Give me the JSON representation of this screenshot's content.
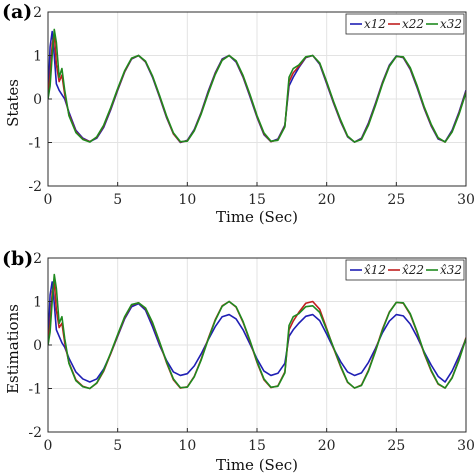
{
  "chart_data": [
    {
      "type": "line",
      "panel_label": "(a)",
      "xlabel": "Time (Sec)",
      "ylabel": "States",
      "xlim": [
        0,
        30
      ],
      "ylim": [
        -2,
        2
      ],
      "xticks": [
        0,
        5,
        10,
        15,
        20,
        25,
        30
      ],
      "yticks": [
        -2,
        -1,
        0,
        1,
        2
      ],
      "grid": true,
      "legend_position": "top-right",
      "series": [
        {
          "name": "x12",
          "color": "#1f1fb4",
          "x": [
            0,
            0.15,
            0.3,
            0.45,
            0.6,
            0.8,
            1.0,
            1.2,
            1.5,
            2,
            2.5,
            3,
            3.5,
            4,
            4.5,
            5,
            5.5,
            6,
            6.5,
            7,
            7.5,
            8,
            8.5,
            9,
            9.5,
            10,
            10.5,
            11,
            11.5,
            12,
            12.5,
            13,
            13.5,
            14,
            14.5,
            15,
            15.5,
            16,
            16.5,
            17,
            17.3,
            17.6,
            18,
            18.5,
            19,
            19.5,
            20,
            20.5,
            21,
            21.5,
            22,
            22.5,
            23,
            23.5,
            24,
            24.5,
            25,
            25.5,
            26,
            26.5,
            27,
            27.5,
            28,
            28.5,
            29,
            29.5,
            30
          ],
          "y": [
            0,
            1.2,
            1.55,
            1.0,
            0.35,
            0.2,
            0.1,
            0.0,
            -0.3,
            -0.72,
            -0.9,
            -0.98,
            -0.9,
            -0.65,
            -0.25,
            0.2,
            0.62,
            0.92,
            1.0,
            0.85,
            0.5,
            0.05,
            -0.42,
            -0.8,
            -1.0,
            -0.95,
            -0.7,
            -0.3,
            0.18,
            0.6,
            0.92,
            1.0,
            0.85,
            0.5,
            0.05,
            -0.42,
            -0.82,
            -0.98,
            -0.92,
            -0.6,
            0.3,
            0.5,
            0.72,
            0.95,
            1.0,
            0.8,
            0.35,
            -0.1,
            -0.52,
            -0.87,
            -0.99,
            -0.9,
            -0.55,
            -0.1,
            0.38,
            0.78,
            0.99,
            0.95,
            0.68,
            0.25,
            -0.22,
            -0.62,
            -0.92,
            -0.98,
            -0.72,
            -0.3,
            0.2
          ]
        },
        {
          "name": "x22",
          "color": "#c01f1f",
          "x": [
            0,
            0.15,
            0.3,
            0.45,
            0.6,
            0.8,
            1.0,
            1.2,
            1.5,
            2,
            2.5,
            3,
            3.5,
            4,
            4.5,
            5,
            5.5,
            6,
            6.5,
            7,
            7.5,
            8,
            8.5,
            9,
            9.5,
            10,
            10.5,
            11,
            11.5,
            12,
            12.5,
            13,
            13.5,
            14,
            14.5,
            15,
            15.5,
            16,
            16.5,
            17,
            17.3,
            17.6,
            18,
            18.5,
            19,
            19.5,
            20,
            20.5,
            21,
            21.5,
            22,
            22.5,
            23,
            23.5,
            24,
            24.5,
            25,
            25.5,
            26,
            26.5,
            27,
            27.5,
            28,
            28.5,
            29,
            29.5,
            30
          ],
          "y": [
            0,
            0.55,
            1.25,
            1.5,
            0.8,
            0.4,
            0.55,
            0.1,
            -0.35,
            -0.75,
            -0.92,
            -0.98,
            -0.88,
            -0.62,
            -0.22,
            0.22,
            0.63,
            0.93,
            1.0,
            0.86,
            0.52,
            0.07,
            -0.4,
            -0.8,
            -0.99,
            -0.96,
            -0.72,
            -0.32,
            0.15,
            0.58,
            0.9,
            1.0,
            0.87,
            0.52,
            0.08,
            -0.4,
            -0.8,
            -0.98,
            -0.94,
            -0.62,
            0.4,
            0.6,
            0.75,
            0.96,
            1.0,
            0.82,
            0.38,
            -0.08,
            -0.5,
            -0.86,
            -0.99,
            -0.92,
            -0.58,
            -0.13,
            0.36,
            0.76,
            0.98,
            0.96,
            0.7,
            0.28,
            -0.2,
            -0.6,
            -0.9,
            -0.99,
            -0.75,
            -0.33,
            0.17
          ]
        },
        {
          "name": "x32",
          "color": "#1f8a1f",
          "x": [
            0,
            0.15,
            0.3,
            0.45,
            0.6,
            0.8,
            1.0,
            1.2,
            1.5,
            2,
            2.5,
            3,
            3.5,
            4,
            4.5,
            5,
            5.5,
            6,
            6.5,
            7,
            7.5,
            8,
            8.5,
            9,
            9.5,
            10,
            10.5,
            11,
            11.5,
            12,
            12.5,
            13,
            13.5,
            14,
            14.5,
            15,
            15.5,
            16,
            16.5,
            17,
            17.3,
            17.6,
            18,
            18.5,
            19,
            19.5,
            20,
            20.5,
            21,
            21.5,
            22,
            22.5,
            23,
            23.5,
            24,
            24.5,
            25,
            25.5,
            26,
            26.5,
            27,
            27.5,
            28,
            28.5,
            29,
            29.5,
            30
          ],
          "y": [
            0,
            0.3,
            1.0,
            1.6,
            1.3,
            0.5,
            0.7,
            0.2,
            -0.38,
            -0.77,
            -0.93,
            -0.99,
            -0.87,
            -0.6,
            -0.2,
            0.24,
            0.65,
            0.94,
            1.0,
            0.87,
            0.53,
            0.09,
            -0.38,
            -0.78,
            -0.98,
            -0.97,
            -0.73,
            -0.34,
            0.13,
            0.56,
            0.89,
            1.0,
            0.88,
            0.54,
            0.1,
            -0.38,
            -0.78,
            -0.97,
            -0.95,
            -0.64,
            0.5,
            0.7,
            0.78,
            0.97,
            1.0,
            0.83,
            0.4,
            -0.06,
            -0.48,
            -0.85,
            -0.99,
            -0.93,
            -0.6,
            -0.15,
            0.34,
            0.75,
            0.98,
            0.97,
            0.72,
            0.3,
            -0.18,
            -0.58,
            -0.89,
            -0.99,
            -0.76,
            -0.35,
            0.15
          ]
        }
      ]
    },
    {
      "type": "line",
      "panel_label": "(b)",
      "xlabel": "Time (Sec)",
      "ylabel": "Estimations",
      "xlim": [
        0,
        30
      ],
      "ylim": [
        -2,
        2
      ],
      "xticks": [
        0,
        5,
        10,
        15,
        20,
        25,
        30
      ],
      "yticks": [
        -2,
        -1,
        0,
        1,
        2
      ],
      "grid": true,
      "legend_position": "top-right",
      "series": [
        {
          "name": "x̂12",
          "color": "#1f1fb4",
          "x": [
            0,
            0.15,
            0.3,
            0.45,
            0.6,
            0.8,
            1.0,
            1.2,
            1.5,
            2,
            2.5,
            3,
            3.5,
            4,
            4.5,
            5,
            5.5,
            6,
            6.5,
            7,
            7.5,
            8,
            8.5,
            9,
            9.5,
            10,
            10.5,
            11,
            11.5,
            12,
            12.5,
            13,
            13.5,
            14,
            14.5,
            15,
            15.5,
            16,
            16.5,
            17,
            17.3,
            17.6,
            18,
            18.5,
            19,
            19.5,
            20,
            20.5,
            21,
            21.5,
            22,
            22.5,
            23,
            23.5,
            24,
            24.5,
            25,
            25.5,
            26,
            26.5,
            27,
            27.5,
            28,
            28.5,
            29,
            29.5,
            30
          ],
          "y": [
            0,
            1.15,
            1.45,
            0.95,
            0.35,
            0.2,
            0.05,
            -0.05,
            -0.3,
            -0.62,
            -0.78,
            -0.85,
            -0.78,
            -0.55,
            -0.2,
            0.2,
            0.6,
            0.88,
            0.95,
            0.8,
            0.42,
            0.0,
            -0.35,
            -0.62,
            -0.7,
            -0.66,
            -0.48,
            -0.2,
            0.12,
            0.42,
            0.65,
            0.7,
            0.6,
            0.35,
            0.02,
            -0.32,
            -0.6,
            -0.7,
            -0.65,
            -0.42,
            0.2,
            0.35,
            0.5,
            0.66,
            0.7,
            0.56,
            0.25,
            -0.08,
            -0.38,
            -0.62,
            -0.7,
            -0.64,
            -0.4,
            -0.08,
            0.28,
            0.55,
            0.7,
            0.67,
            0.48,
            0.18,
            -0.16,
            -0.46,
            -0.72,
            -0.85,
            -0.6,
            -0.25,
            0.15
          ]
        },
        {
          "name": "x̂22",
          "color": "#c01f1f",
          "x": [
            0,
            0.15,
            0.3,
            0.45,
            0.6,
            0.8,
            1.0,
            1.2,
            1.5,
            2,
            2.5,
            3,
            3.5,
            4,
            4.5,
            5,
            5.5,
            6,
            6.5,
            7,
            7.5,
            8,
            8.5,
            9,
            9.5,
            10,
            10.5,
            11,
            11.5,
            12,
            12.5,
            13,
            13.5,
            14,
            14.5,
            15,
            15.5,
            16,
            16.5,
            17,
            17.3,
            17.6,
            18,
            18.5,
            19,
            19.5,
            20,
            20.5,
            21,
            21.5,
            22,
            22.5,
            23,
            23.5,
            24,
            24.5,
            25,
            25.5,
            26,
            26.5,
            27,
            27.5,
            28,
            28.5,
            29,
            29.5,
            30
          ],
          "y": [
            0,
            0.5,
            1.2,
            1.45,
            0.8,
            0.4,
            0.5,
            0.05,
            -0.4,
            -0.8,
            -0.95,
            -1.0,
            -0.88,
            -0.6,
            -0.2,
            0.22,
            0.63,
            0.92,
            0.97,
            0.84,
            0.5,
            0.06,
            -0.4,
            -0.8,
            -0.99,
            -0.96,
            -0.72,
            -0.32,
            0.15,
            0.58,
            0.9,
            1.0,
            0.87,
            0.52,
            0.08,
            -0.4,
            -0.8,
            -0.98,
            -0.94,
            -0.62,
            0.35,
            0.55,
            0.75,
            0.96,
            1.0,
            0.82,
            0.38,
            -0.08,
            -0.5,
            -0.86,
            -0.99,
            -0.92,
            -0.58,
            -0.13,
            0.36,
            0.76,
            0.98,
            0.96,
            0.7,
            0.28,
            -0.2,
            -0.6,
            -0.9,
            -0.99,
            -0.75,
            -0.33,
            0.17
          ]
        },
        {
          "name": "x̂32",
          "color": "#1f8a1f",
          "x": [
            0,
            0.15,
            0.3,
            0.45,
            0.6,
            0.8,
            1.0,
            1.2,
            1.5,
            2,
            2.5,
            3,
            3.5,
            4,
            4.5,
            5,
            5.5,
            6,
            6.5,
            7,
            7.5,
            8,
            8.5,
            9,
            9.5,
            10,
            10.5,
            11,
            11.5,
            12,
            12.5,
            13,
            13.5,
            14,
            14.5,
            15,
            15.5,
            16,
            16.5,
            17,
            17.3,
            17.6,
            18,
            18.5,
            19,
            19.5,
            20,
            20.5,
            21,
            21.5,
            22,
            22.5,
            23,
            23.5,
            24,
            24.5,
            25,
            25.5,
            26,
            26.5,
            27,
            27.5,
            28,
            28.5,
            29,
            29.5,
            30
          ],
          "y": [
            0,
            0.3,
            1.0,
            1.62,
            1.3,
            0.5,
            0.65,
            0.15,
            -0.42,
            -0.82,
            -0.96,
            -1.0,
            -0.87,
            -0.58,
            -0.18,
            0.24,
            0.65,
            0.93,
            0.97,
            0.85,
            0.52,
            0.08,
            -0.38,
            -0.78,
            -0.98,
            -0.97,
            -0.73,
            -0.34,
            0.13,
            0.56,
            0.89,
            1.0,
            0.88,
            0.54,
            0.1,
            -0.38,
            -0.78,
            -0.97,
            -0.95,
            -0.64,
            0.45,
            0.65,
            0.72,
            0.88,
            0.9,
            0.75,
            0.35,
            -0.06,
            -0.48,
            -0.85,
            -0.99,
            -0.93,
            -0.6,
            -0.15,
            0.34,
            0.75,
            0.98,
            0.97,
            0.72,
            0.3,
            -0.18,
            -0.58,
            -0.89,
            -0.99,
            -0.76,
            -0.35,
            0.15
          ]
        }
      ]
    }
  ]
}
